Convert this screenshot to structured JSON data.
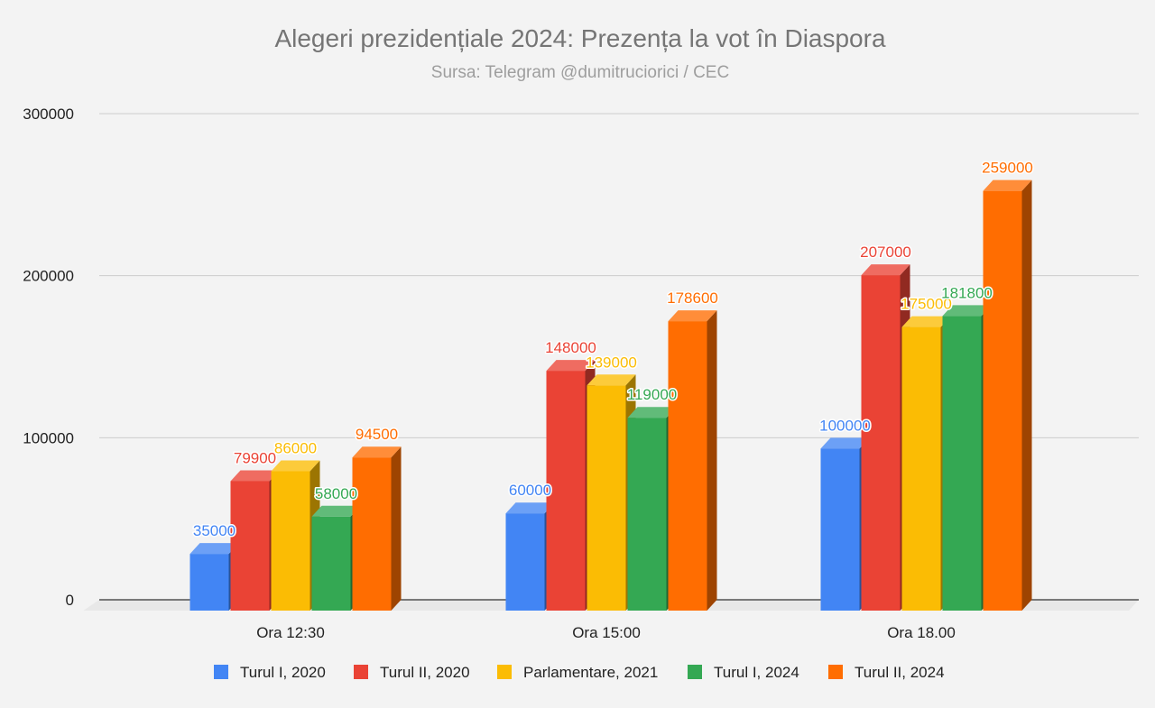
{
  "chart_data": {
    "type": "bar",
    "title": "Alegeri prezidențiale 2024: Prezența la vot în Diaspora",
    "subtitle": "Sursa: Telegram @dumitruciorici / CEC",
    "categories": [
      "Ora 12:30",
      "Ora 15:00",
      "Ora 18.00"
    ],
    "ylim": [
      0,
      300000
    ],
    "yticks": [
      0,
      100000,
      200000,
      300000
    ],
    "grid": true,
    "legend_position": "bottom",
    "style": "3d-bars",
    "series": [
      {
        "name": "Turul I, 2020",
        "color": "#4285f4",
        "values": [
          35000,
          60000,
          100000
        ]
      },
      {
        "name": "Turul II, 2020",
        "color": "#ea4335",
        "values": [
          79900,
          148000,
          207000
        ]
      },
      {
        "name": "Parlamentare, 2021",
        "color": "#fbbc04",
        "values": [
          86000,
          139000,
          175000
        ]
      },
      {
        "name": "Turul I, 2024",
        "color": "#34a853",
        "values": [
          58000,
          119000,
          181800
        ]
      },
      {
        "name": "Turul II, 2024",
        "color": "#ff6d01",
        "values": [
          94500,
          178600,
          259000
        ]
      }
    ]
  }
}
